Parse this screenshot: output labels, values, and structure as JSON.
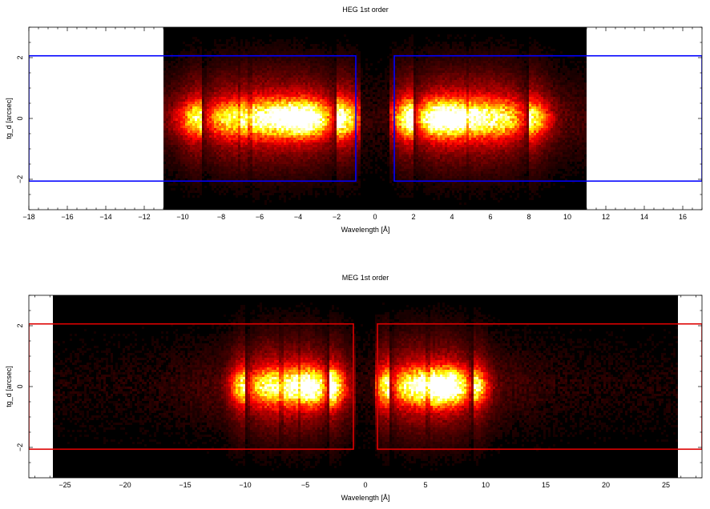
{
  "chart_data": [
    {
      "type": "heatmap",
      "title": "HEG 1st order",
      "xlabel": "Wavelength [Å]",
      "ylabel": "tg_d [arcsec]",
      "xlim": [
        -18,
        17
      ],
      "ylim": [
        -3,
        3
      ],
      "xticks": [
        -18,
        -16,
        -14,
        -12,
        -10,
        -8,
        -6,
        -4,
        -2,
        0,
        2,
        4,
        6,
        8,
        10,
        12,
        14,
        16
      ],
      "yticks": [
        -2,
        0,
        2
      ],
      "data_extent": {
        "x": [
          -11,
          11
        ],
        "y": [
          -3,
          3
        ]
      },
      "colormap": "hot (black → red → orange → yellow → white)",
      "region_color": "#0000ff",
      "regions": [
        {
          "name": "minus order",
          "x": [
            -18,
            -1
          ],
          "y": [
            -2.06,
            2.06
          ]
        },
        {
          "name": "plus order",
          "x": [
            1,
            17
          ],
          "y": [
            -2.06,
            2.06
          ]
        }
      ],
      "bright_bands": [
        {
          "x": [
            -9,
            -2
          ],
          "peak_x": -3.5,
          "intensity": 1.0
        },
        {
          "x": [
            2,
            8
          ],
          "peak_x": 3.2,
          "intensity": 1.0
        }
      ],
      "dark_lines_x": [
        -7.1,
        -6.5,
        4.8
      ]
    },
    {
      "type": "heatmap",
      "title": "MEG 1st order",
      "xlabel": "Wavelength [Å]",
      "ylabel": "tg_d [arcsec]",
      "xlim": [
        -28,
        28
      ],
      "ylim": [
        -3,
        3
      ],
      "xticks": [
        -25,
        -20,
        -15,
        -10,
        -5,
        0,
        5,
        10,
        15,
        20,
        25
      ],
      "yticks": [
        -2,
        0,
        2
      ],
      "data_extent": {
        "x": [
          -26,
          26
        ],
        "y": [
          -3,
          3
        ]
      },
      "colormap": "hot (black → red → orange → yellow → white)",
      "region_color": "#dd0000",
      "regions": [
        {
          "name": "minus order",
          "x": [
            -28,
            -1
          ],
          "y": [
            -2.06,
            2.06
          ]
        },
        {
          "name": "plus order",
          "x": [
            1,
            28
          ],
          "y": [
            -2.06,
            2.06
          ]
        }
      ],
      "bright_bands": [
        {
          "x": [
            -10,
            -3
          ],
          "peak_x": -3.8,
          "intensity": 1.0
        },
        {
          "x": [
            2,
            9
          ],
          "peak_x": 6.5,
          "intensity": 1.0
        }
      ],
      "dark_lines_x": [
        -7.0,
        -5.5,
        5.2
      ]
    }
  ]
}
